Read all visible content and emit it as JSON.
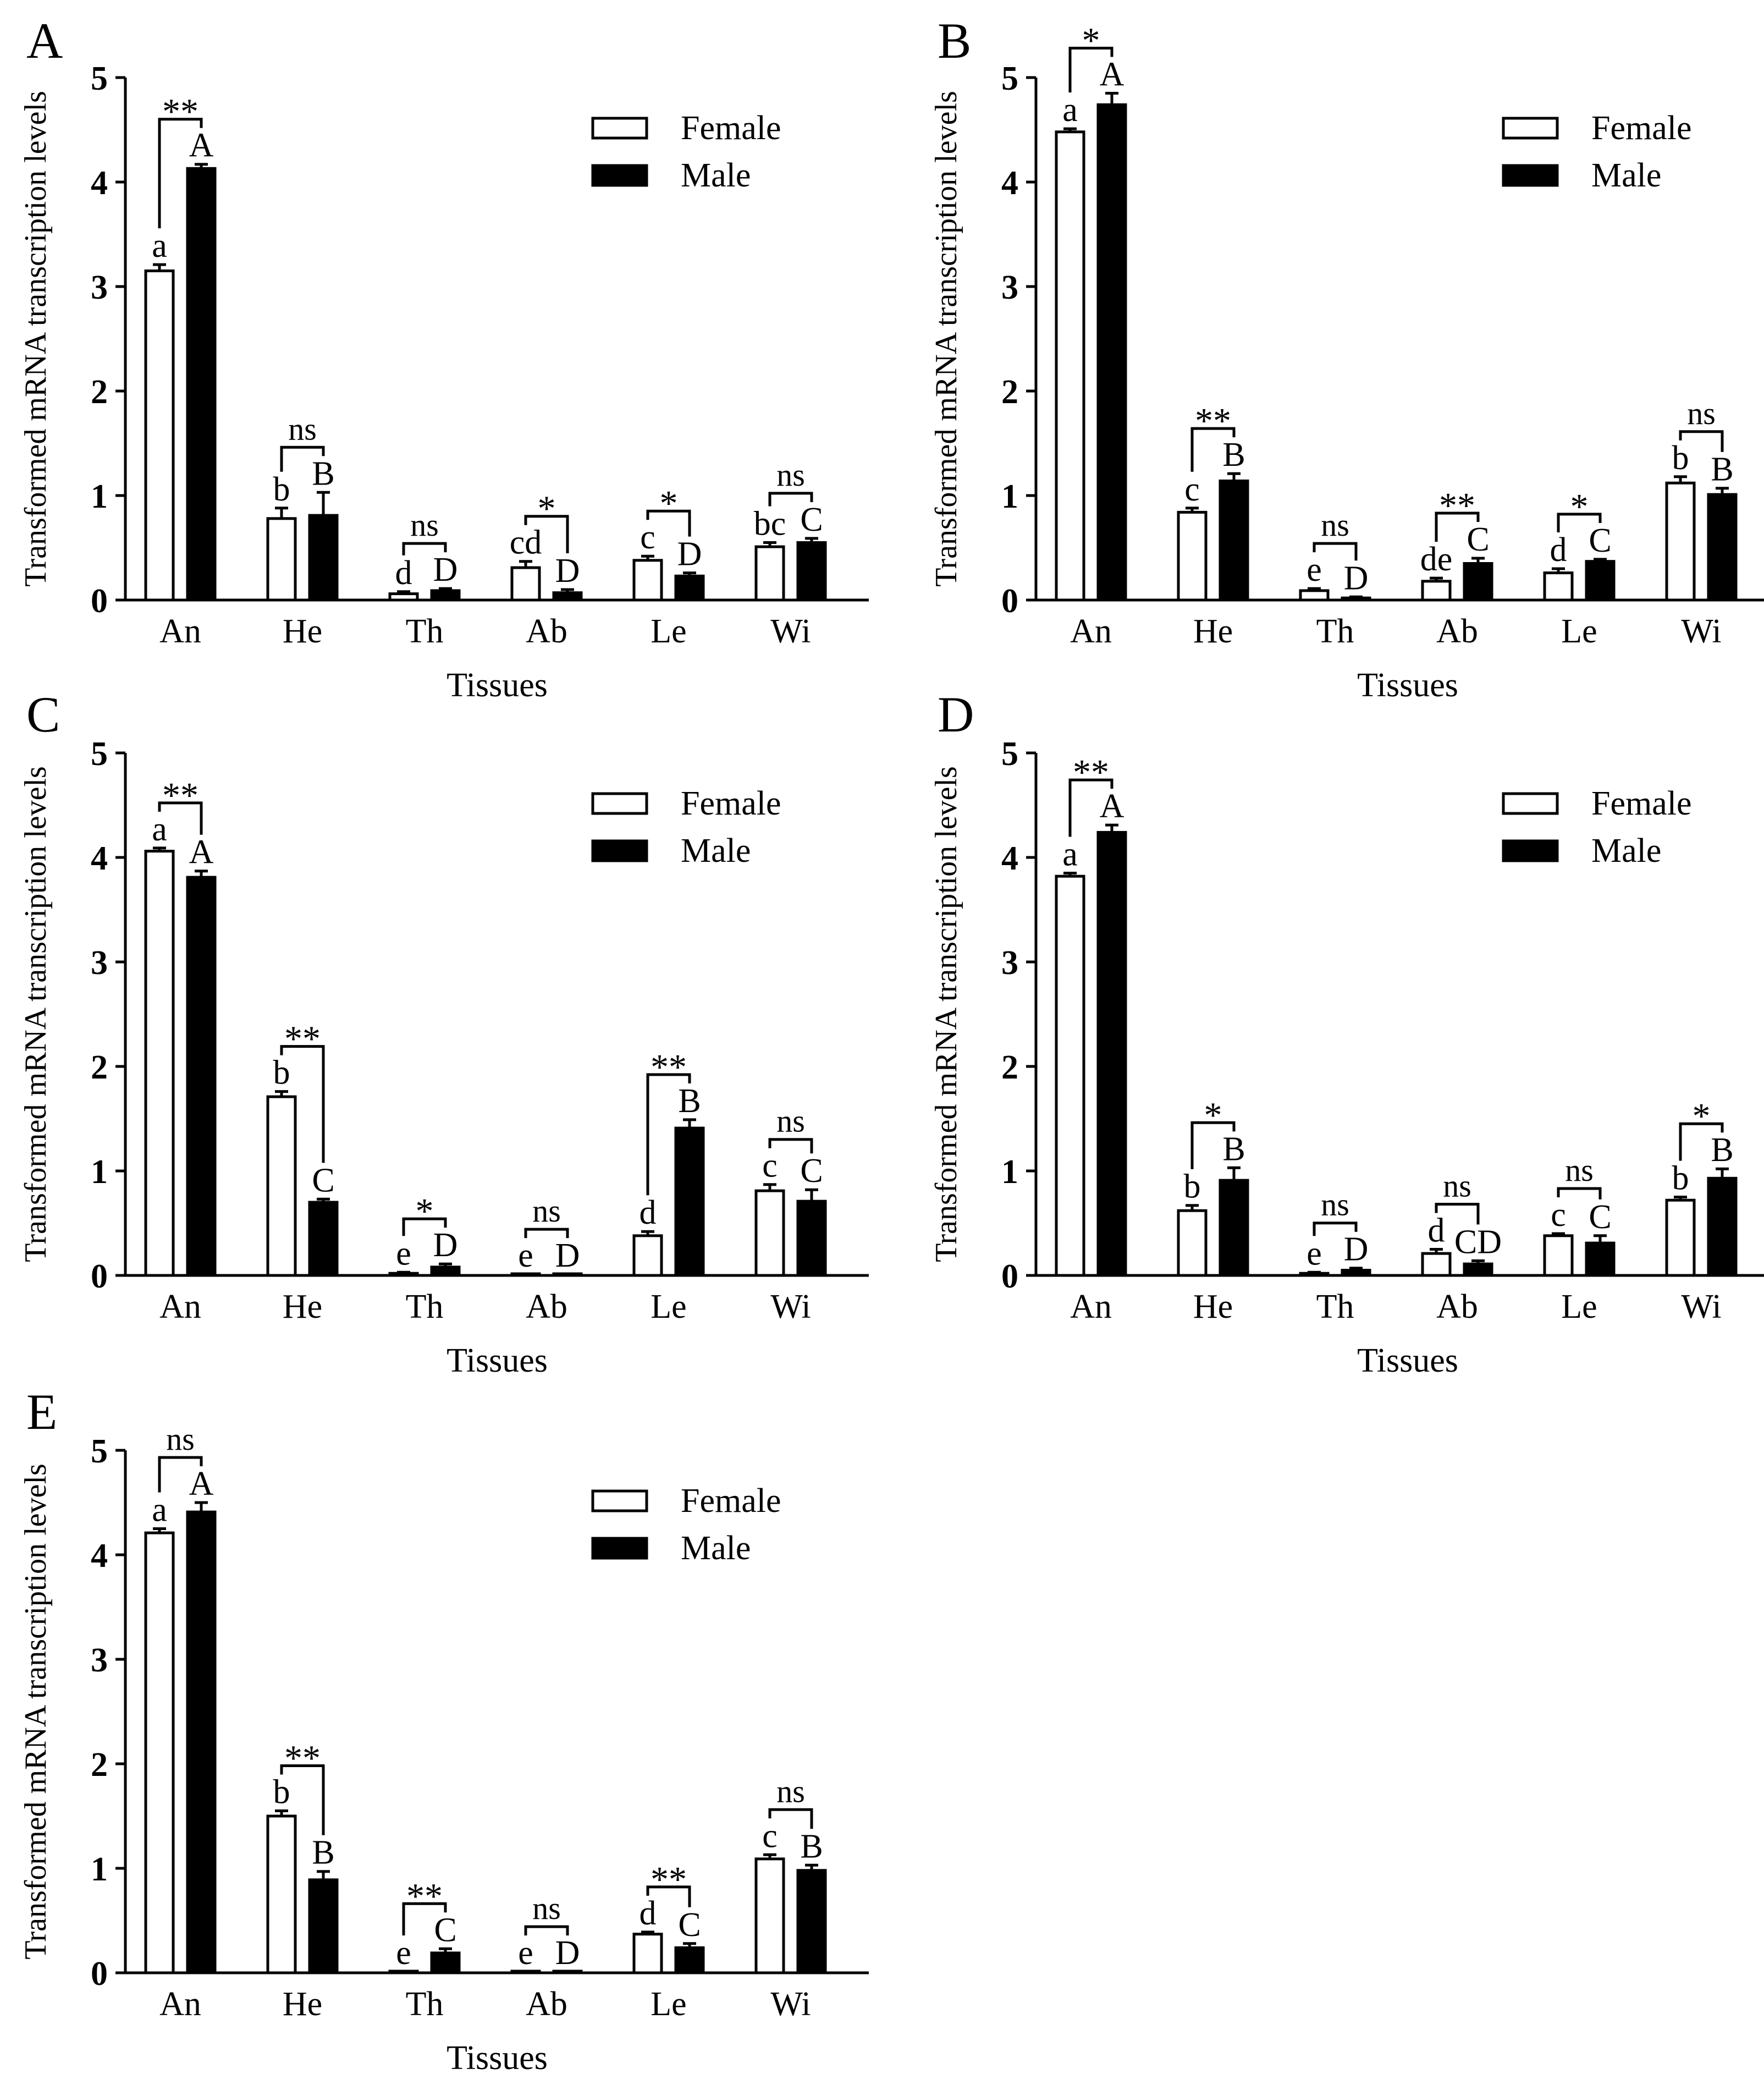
{
  "figure": {
    "legend_labels": [
      "Female",
      "Male"
    ],
    "x_label": "Tissues",
    "y_label": "Transformed mRNA transcription levels"
  },
  "chart_data": [
    {
      "panel": "A",
      "type": "bar",
      "categories": [
        "An",
        "He",
        "Th",
        "Ab",
        "Le",
        "Wi"
      ],
      "series": [
        {
          "name": "Female",
          "values": [
            3.15,
            0.78,
            0.06,
            0.31,
            0.38,
            0.51
          ],
          "errors": [
            0.06,
            0.1,
            0.02,
            0.06,
            0.04,
            0.04
          ],
          "letters": [
            "a",
            "b",
            "d",
            "cd",
            "c",
            "bc"
          ]
        },
        {
          "name": "Male",
          "values": [
            4.13,
            0.81,
            0.09,
            0.07,
            0.23,
            0.55
          ],
          "errors": [
            0.04,
            0.22,
            0.02,
            0.03,
            0.03,
            0.04
          ],
          "letters": [
            "A",
            "B",
            "D",
            "D",
            "D",
            "C"
          ]
        }
      ],
      "significance": [
        "**",
        "ns",
        "ns",
        "*",
        "*",
        "ns"
      ],
      "xlabel": "Tissues",
      "ylabel": "Transformed mRNA transcription levels",
      "ylim": [
        0,
        5
      ],
      "yticks": [
        "0",
        "1",
        "2",
        "3",
        "4",
        "5"
      ],
      "legend": "top-right"
    },
    {
      "panel": "B",
      "type": "bar",
      "categories": [
        "An",
        "He",
        "Th",
        "Ab",
        "Le",
        "Wi"
      ],
      "series": [
        {
          "name": "Female",
          "values": [
            4.48,
            0.84,
            0.09,
            0.18,
            0.26,
            1.12
          ],
          "errors": [
            0.03,
            0.04,
            0.02,
            0.03,
            0.04,
            0.06
          ],
          "letters": [
            "a",
            "c",
            "e",
            "de",
            "d",
            "b"
          ]
        },
        {
          "name": "Male",
          "values": [
            4.74,
            1.14,
            0.02,
            0.35,
            0.37,
            1.01
          ],
          "errors": [
            0.11,
            0.07,
            0.01,
            0.05,
            0.02,
            0.06
          ],
          "letters": [
            "A",
            "B",
            "D",
            "C",
            "C",
            "B"
          ]
        }
      ],
      "significance": [
        "*",
        "**",
        "ns",
        "**",
        "*",
        "ns"
      ],
      "xlabel": "Tissues",
      "ylabel": "Transformed mRNA transcription levels",
      "ylim": [
        0,
        5
      ],
      "yticks": [
        "0",
        "1",
        "2",
        "3",
        "4",
        "5"
      ],
      "legend": "top-right"
    },
    {
      "panel": "C",
      "type": "bar",
      "categories": [
        "An",
        "He",
        "Th",
        "Ab",
        "Le",
        "Wi"
      ],
      "series": [
        {
          "name": "Female",
          "values": [
            4.06,
            1.71,
            0.02,
            0.01,
            0.38,
            0.81
          ],
          "errors": [
            0.03,
            0.05,
            0.01,
            0.0,
            0.04,
            0.06
          ],
          "letters": [
            "a",
            "b",
            "e",
            "e",
            "d",
            "c"
          ]
        },
        {
          "name": "Male",
          "values": [
            3.81,
            0.7,
            0.08,
            0.01,
            1.41,
            0.71
          ],
          "errors": [
            0.06,
            0.03,
            0.03,
            0.0,
            0.08,
            0.11
          ],
          "letters": [
            "A",
            "C",
            "D",
            "D",
            "B",
            "C"
          ]
        }
      ],
      "significance": [
        "**",
        "**",
        "*",
        "ns",
        "**",
        "ns"
      ],
      "xlabel": "Tissues",
      "ylabel": "Transformed mRNA transcription levels",
      "ylim": [
        0,
        5
      ],
      "yticks": [
        "0",
        "1",
        "2",
        "3",
        "4",
        "5"
      ],
      "legend": "top-right"
    },
    {
      "panel": "D",
      "type": "bar",
      "categories": [
        "An",
        "He",
        "Th",
        "Ab",
        "Le",
        "Wi"
      ],
      "series": [
        {
          "name": "Female",
          "values": [
            3.82,
            0.62,
            0.02,
            0.21,
            0.38,
            0.72
          ],
          "errors": [
            0.03,
            0.05,
            0.01,
            0.04,
            0.02,
            0.03
          ],
          "letters": [
            "a",
            "b",
            "e",
            "d",
            "c",
            "b"
          ]
        },
        {
          "name": "Male",
          "values": [
            4.24,
            0.91,
            0.05,
            0.11,
            0.31,
            0.93
          ],
          "errors": [
            0.07,
            0.12,
            0.02,
            0.03,
            0.07,
            0.09
          ],
          "letters": [
            "A",
            "B",
            "D",
            "CD",
            "C",
            "B"
          ]
        }
      ],
      "significance": [
        "**",
        "*",
        "ns",
        "ns",
        "ns",
        "*"
      ],
      "xlabel": "Tissues",
      "ylabel": "Transformed mRNA transcription levels",
      "ylim": [
        0,
        5
      ],
      "yticks": [
        "0",
        "1",
        "2",
        "3",
        "4",
        "5"
      ],
      "legend": "top-right"
    },
    {
      "panel": "E",
      "type": "bar",
      "categories": [
        "An",
        "He",
        "Th",
        "Ab",
        "Le",
        "Wi"
      ],
      "series": [
        {
          "name": "Female",
          "values": [
            4.21,
            1.5,
            0.01,
            0.01,
            0.37,
            1.09
          ],
          "errors": [
            0.04,
            0.05,
            0.0,
            0.0,
            0.02,
            0.04
          ],
          "letters": [
            "a",
            "b",
            "e",
            "e",
            "d",
            "c"
          ]
        },
        {
          "name": "Male",
          "values": [
            4.41,
            0.89,
            0.19,
            0.01,
            0.24,
            0.98
          ],
          "errors": [
            0.09,
            0.08,
            0.04,
            0.0,
            0.04,
            0.05
          ],
          "letters": [
            "A",
            "B",
            "C",
            "D",
            "C",
            "B"
          ]
        }
      ],
      "significance": [
        "ns",
        "**",
        "**",
        "ns",
        "**",
        "ns"
      ],
      "xlabel": "Tissues",
      "ylabel": "Transformed mRNA transcription levels",
      "ylim": [
        0,
        5
      ],
      "yticks": [
        "0",
        "1",
        "2",
        "3",
        "4",
        "5"
      ],
      "legend": "top-right"
    }
  ]
}
